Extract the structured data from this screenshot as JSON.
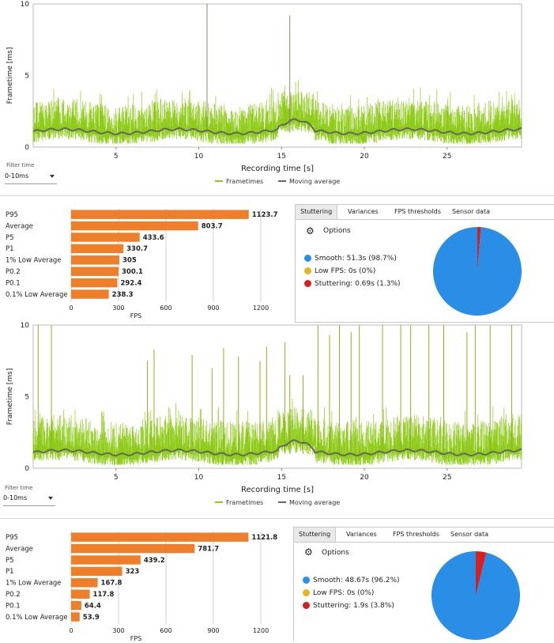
{
  "colors": {
    "frametime": "#8fcc1a",
    "moving_average": "#666666",
    "bar": "#ef7e2a",
    "smooth": "#2a8de6",
    "low_fps": "#e2b626",
    "stuttering": "#d42020"
  },
  "view1": {
    "chart": {
      "type": "line",
      "xlabel": "Recording time [s]",
      "ylabel": "Frametime [ms]",
      "xlim": [
        0,
        29.5
      ],
      "ylim": [
        0,
        10
      ],
      "xticks": [
        "5",
        "10",
        "15",
        "20",
        "25"
      ],
      "yticks": [
        "0",
        "5",
        "10"
      ],
      "legend": [
        "Frametimes",
        "Moving average"
      ],
      "spikes": [
        [
          10.5,
          10
        ],
        [
          15.5,
          9.2
        ]
      ]
    },
    "filter": {
      "label": "Filter time",
      "value": "0-10ms"
    },
    "bar_chart": {
      "type": "bar",
      "xlabel": "FPS",
      "xlim": [
        0,
        1350
      ],
      "xticks": [
        "0",
        "300",
        "600",
        "900",
        "1200"
      ],
      "categories": [
        "P95",
        "Average",
        "P5",
        "P1",
        "1% Low Average",
        "P0.2",
        "P0.1",
        "0.1% Low Average"
      ],
      "values": [
        1123.7,
        803.7,
        433.6,
        330.7,
        305,
        300.1,
        292.4,
        238.3
      ],
      "labels": [
        "1123.7",
        "803.7",
        "433.6",
        "330.7",
        "305",
        "300.1",
        "292.4",
        "238.3"
      ]
    },
    "stutter": {
      "tabs": [
        "Stuttering",
        "Variances",
        "FPS thresholds",
        "Sensor data"
      ],
      "options_label": "Options",
      "rows": [
        {
          "label": "Smooth:",
          "value": "51.3s (98.7%)"
        },
        {
          "label": "Low FPS:",
          "value": "0s (0%)"
        },
        {
          "label": "Stuttering:",
          "value": "0.69s (1.3%)"
        }
      ],
      "pie": [
        98.7,
        0,
        1.3
      ]
    }
  },
  "view2": {
    "chart": {
      "type": "line",
      "xlabel": "Recording time [s]",
      "ylabel": "Frametime [ms]",
      "xlim": [
        0,
        29.5
      ],
      "ylim": [
        0,
        10
      ],
      "xticks": [
        "5",
        "10",
        "15",
        "20",
        "25"
      ],
      "yticks": [
        "0",
        "5",
        "10"
      ],
      "legend": [
        "Frametimes",
        "Moving average"
      ],
      "spikes": [
        [
          0.3,
          10
        ],
        [
          1.1,
          10
        ],
        [
          6.9,
          7.5
        ],
        [
          7.3,
          8.3
        ],
        [
          9.6,
          7.9
        ],
        [
          10.8,
          7
        ],
        [
          11.5,
          8.4
        ],
        [
          13.7,
          7.5
        ],
        [
          15.2,
          8.8
        ],
        [
          15.5,
          6.5
        ],
        [
          17.2,
          10
        ],
        [
          17.9,
          9.3
        ],
        [
          18.5,
          10
        ],
        [
          19.7,
          10
        ],
        [
          21.1,
          10
        ],
        [
          22.8,
          10
        ],
        [
          23.9,
          10
        ],
        [
          24.8,
          10
        ],
        [
          26.2,
          9.5
        ],
        [
          27.6,
          10
        ],
        [
          28.9,
          10
        ],
        [
          12.4,
          7.8
        ],
        [
          14.1,
          8.5
        ],
        [
          16.3,
          6.5
        ],
        [
          19.2,
          9.5
        ],
        [
          22.2,
          10
        ],
        [
          26.7,
          10
        ]
      ]
    },
    "filter": {
      "label": "Filter time",
      "value": "0-10ms"
    },
    "bar_chart": {
      "type": "bar",
      "xlabel": "FPS",
      "xlim": [
        0,
        1350
      ],
      "xticks": [
        "0",
        "300",
        "600",
        "900",
        "1200"
      ],
      "categories": [
        "P95",
        "Average",
        "P5",
        "P1",
        "1% Low Average",
        "P0.2",
        "P0.1",
        "0.1% Low Average"
      ],
      "values": [
        1121.8,
        781.7,
        439.2,
        323,
        167.8,
        117.8,
        64.4,
        53.9
      ],
      "labels": [
        "1121.8",
        "781.7",
        "439.2",
        "323",
        "167.8",
        "117.8",
        "64.4",
        "53.9"
      ]
    },
    "stutter": {
      "tabs": [
        "Stuttering",
        "Variances",
        "FPS thresholds",
        "Sensor data"
      ],
      "options_label": "Options",
      "rows": [
        {
          "label": "Smooth:",
          "value": "48.67s (96.2%)"
        },
        {
          "label": "Low FPS:",
          "value": "0s (0%)"
        },
        {
          "label": "Stuttering:",
          "value": "1.9s (3.8%)"
        }
      ],
      "pie": [
        96.2,
        0,
        3.8
      ]
    }
  }
}
